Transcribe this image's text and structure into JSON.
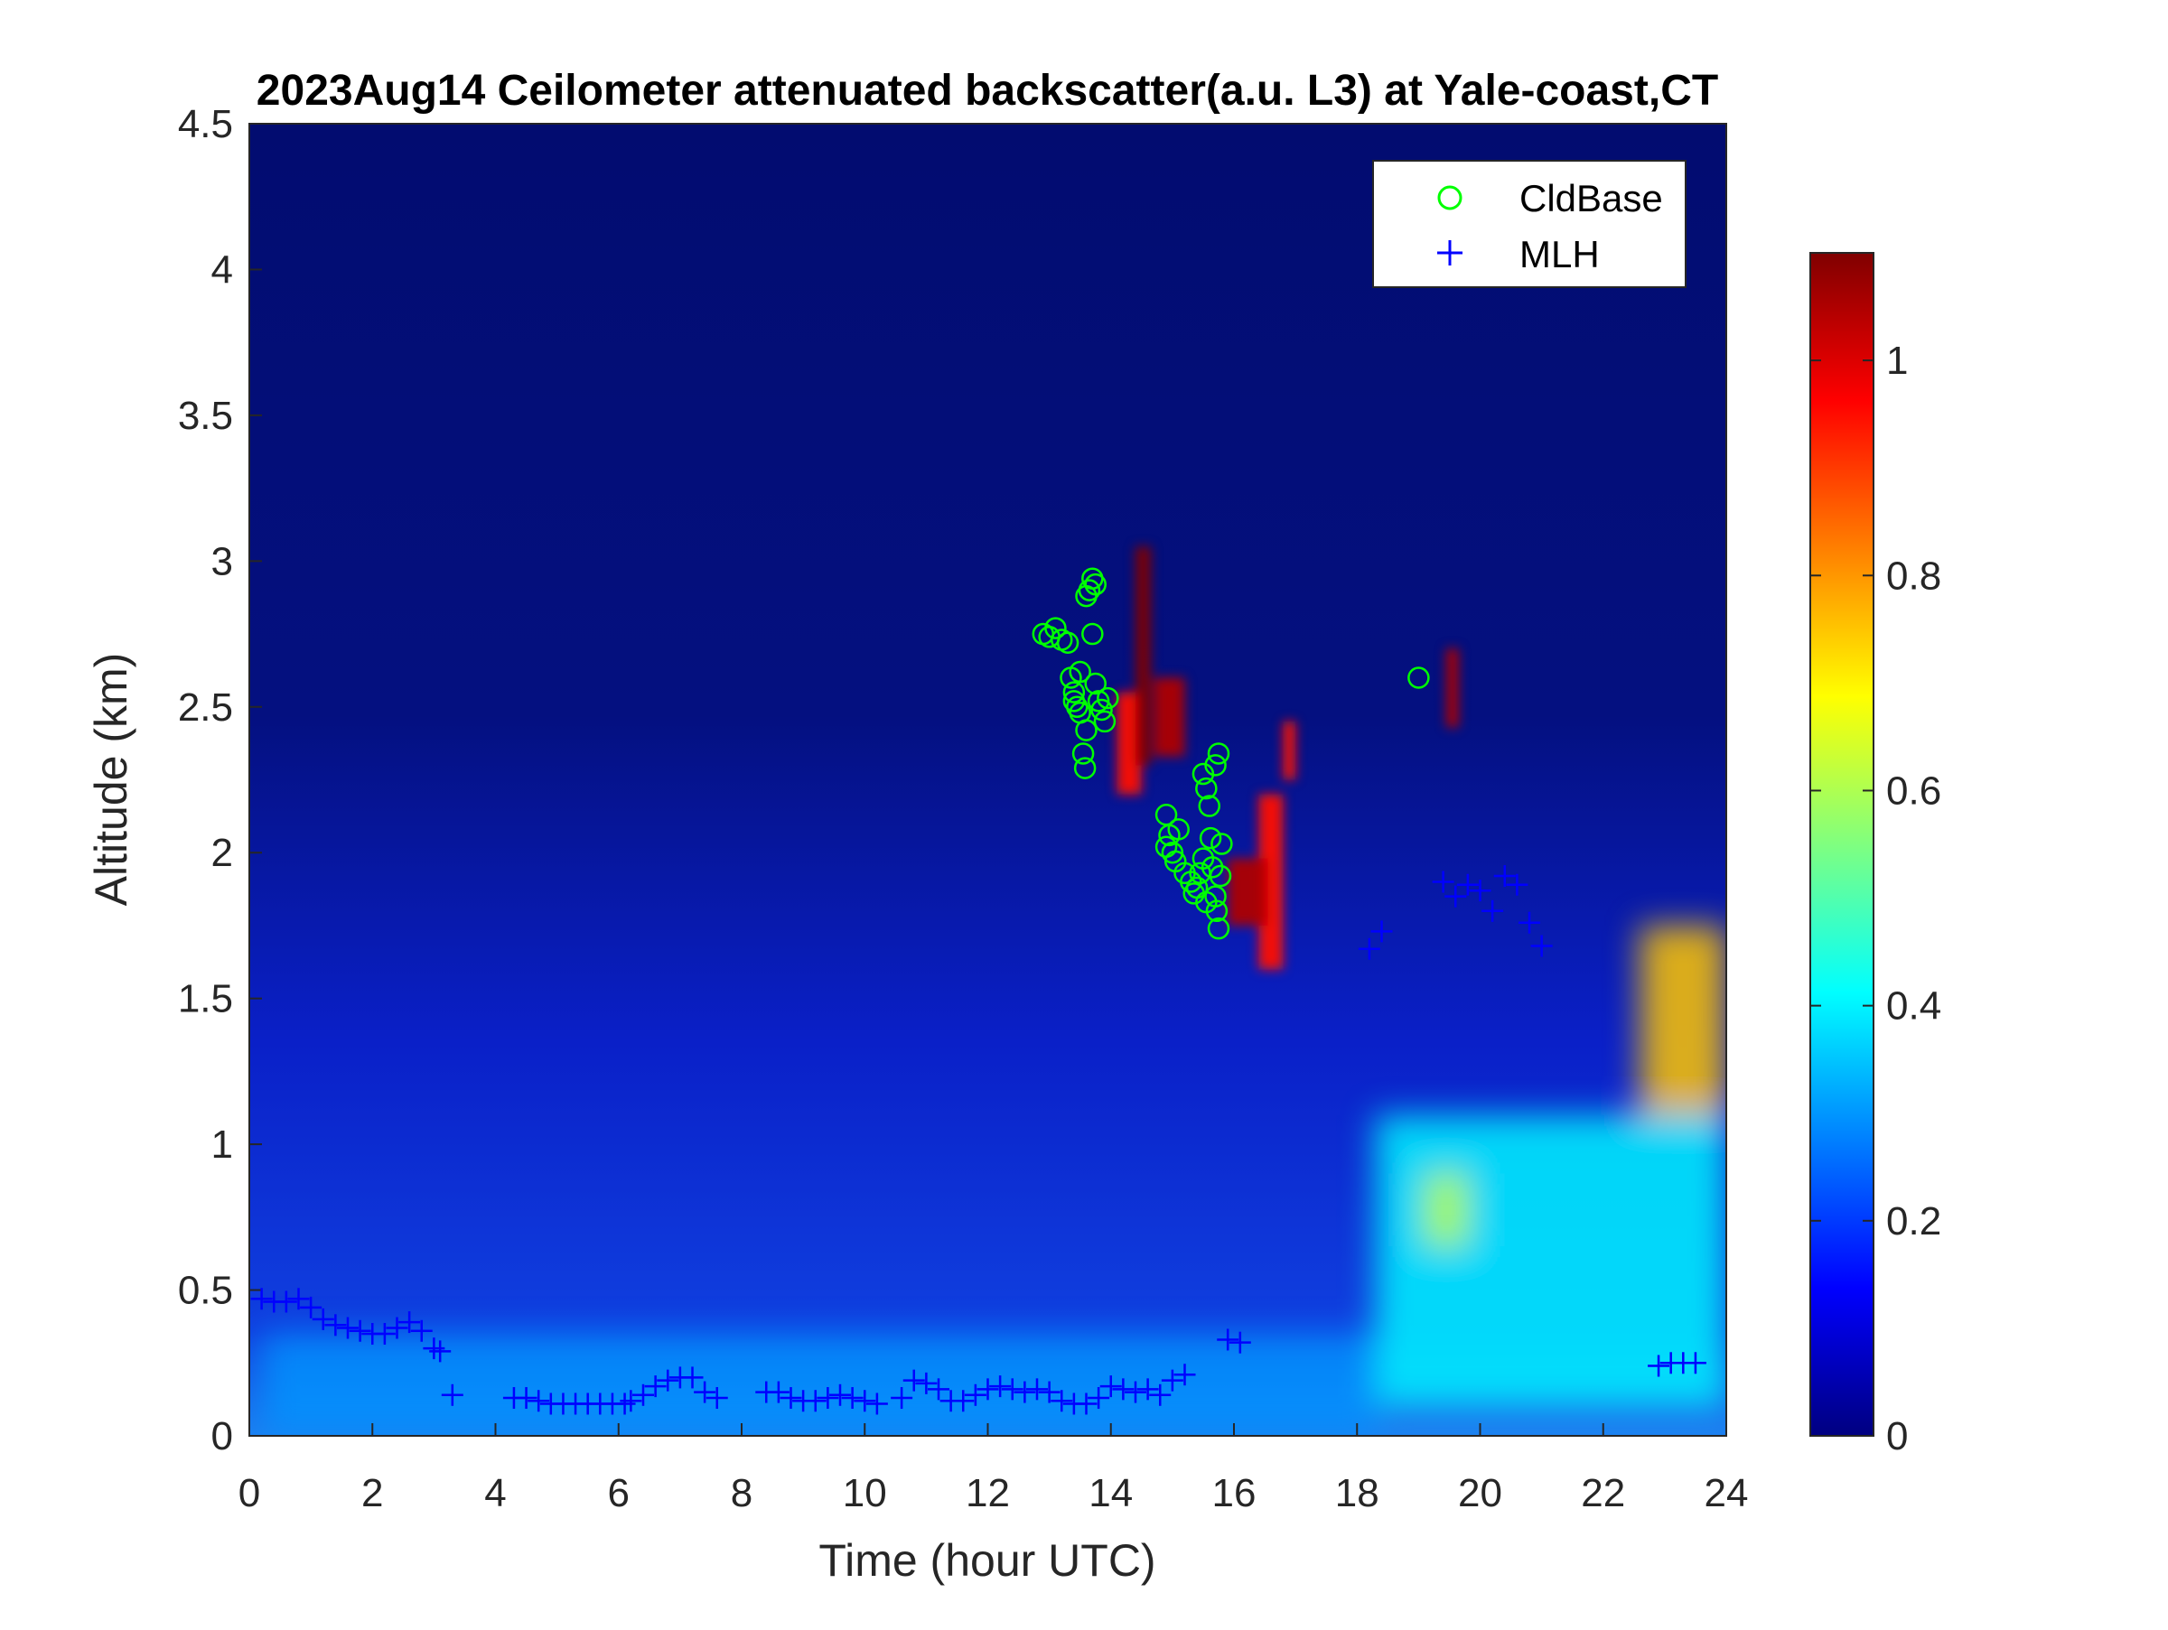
{
  "chart_data": {
    "type": "heatmap",
    "title": "2023Aug14 Ceilometer attenuated backscatter(a.u. L3) at Yale-coast,CT",
    "xlabel": "Time (hour UTC)",
    "ylabel": "Altitude (km)",
    "xlim": [
      0,
      24
    ],
    "ylim": [
      0,
      4.5
    ],
    "xticks": [
      0,
      2,
      4,
      6,
      8,
      10,
      12,
      14,
      16,
      18,
      20,
      22,
      24
    ],
    "yticks": [
      0,
      0.5,
      1,
      1.5,
      2,
      2.5,
      3,
      3.5,
      4,
      4.5
    ],
    "xtick_labels": [
      "0",
      "2",
      "4",
      "6",
      "8",
      "10",
      "12",
      "14",
      "16",
      "18",
      "20",
      "22",
      "24"
    ],
    "ytick_labels": [
      "0",
      "0.5",
      "1",
      "1.5",
      "2",
      "2.5",
      "3",
      "3.5",
      "4",
      "4.5"
    ],
    "colorbar": {
      "colormap": "jet",
      "clim": [
        0,
        1.1
      ],
      "ticks": [
        0,
        0.2,
        0.4,
        0.6,
        0.8,
        1
      ],
      "tick_labels": [
        "0",
        "0.2",
        "0.4",
        "0.6",
        "0.8",
        "1"
      ]
    },
    "legend": {
      "position": "top-right",
      "entries": [
        {
          "label": "CldBase",
          "marker": "circle",
          "color": "#00ff00"
        },
        {
          "label": "MLH",
          "marker": "plus",
          "color": "#0000ff"
        }
      ]
    },
    "series": [
      {
        "name": "CldBase",
        "marker": "circle",
        "color": "#00ff00",
        "points": [
          [
            12.9,
            2.75
          ],
          [
            13.0,
            2.74
          ],
          [
            13.1,
            2.77
          ],
          [
            13.2,
            2.73
          ],
          [
            13.3,
            2.72
          ],
          [
            13.35,
            2.6
          ],
          [
            13.4,
            2.55
          ],
          [
            13.45,
            2.5
          ],
          [
            13.5,
            2.48
          ],
          [
            13.55,
            2.34
          ],
          [
            13.58,
            2.29
          ],
          [
            13.6,
            2.88
          ],
          [
            13.65,
            2.9
          ],
          [
            13.7,
            2.94
          ],
          [
            13.75,
            2.92
          ],
          [
            13.7,
            2.75
          ],
          [
            13.75,
            2.58
          ],
          [
            13.8,
            2.52
          ],
          [
            13.85,
            2.49
          ],
          [
            13.9,
            2.45
          ],
          [
            13.95,
            2.53
          ],
          [
            13.5,
            2.62
          ],
          [
            13.4,
            2.52
          ],
          [
            13.6,
            2.42
          ],
          [
            14.9,
            2.13
          ],
          [
            14.95,
            2.06
          ],
          [
            15.0,
            2.0
          ],
          [
            15.05,
            1.97
          ],
          [
            14.9,
            2.02
          ],
          [
            15.1,
            2.08
          ],
          [
            15.2,
            1.93
          ],
          [
            15.3,
            1.9
          ],
          [
            15.35,
            1.86
          ],
          [
            15.4,
            1.88
          ],
          [
            15.45,
            1.93
          ],
          [
            15.5,
            1.98
          ],
          [
            15.5,
            2.27
          ],
          [
            15.55,
            2.22
          ],
          [
            15.6,
            2.16
          ],
          [
            15.62,
            2.05
          ],
          [
            15.65,
            1.95
          ],
          [
            15.7,
            1.85
          ],
          [
            15.72,
            1.8
          ],
          [
            15.75,
            1.74
          ],
          [
            15.78,
            1.92
          ],
          [
            15.8,
            2.03
          ],
          [
            15.7,
            2.3
          ],
          [
            15.75,
            2.34
          ],
          [
            15.55,
            1.83
          ],
          [
            19.0,
            2.6
          ]
        ]
      },
      {
        "name": "MLH",
        "marker": "plus",
        "color": "#0000ff",
        "points": [
          [
            0.2,
            0.47
          ],
          [
            0.4,
            0.46
          ],
          [
            0.6,
            0.46
          ],
          [
            0.8,
            0.47
          ],
          [
            1.0,
            0.44
          ],
          [
            1.2,
            0.4
          ],
          [
            1.4,
            0.38
          ],
          [
            1.6,
            0.37
          ],
          [
            1.8,
            0.36
          ],
          [
            2.0,
            0.35
          ],
          [
            2.2,
            0.35
          ],
          [
            2.4,
            0.37
          ],
          [
            2.6,
            0.39
          ],
          [
            2.8,
            0.36
          ],
          [
            3.0,
            0.3
          ],
          [
            3.1,
            0.29
          ],
          [
            3.3,
            0.14
          ],
          [
            4.3,
            0.13
          ],
          [
            4.5,
            0.13
          ],
          [
            4.7,
            0.12
          ],
          [
            4.9,
            0.11
          ],
          [
            5.1,
            0.11
          ],
          [
            5.3,
            0.11
          ],
          [
            5.5,
            0.11
          ],
          [
            5.7,
            0.11
          ],
          [
            5.9,
            0.11
          ],
          [
            6.1,
            0.11
          ],
          [
            6.2,
            0.12
          ],
          [
            6.4,
            0.14
          ],
          [
            6.6,
            0.17
          ],
          [
            6.8,
            0.19
          ],
          [
            7.0,
            0.2
          ],
          [
            7.2,
            0.2
          ],
          [
            7.4,
            0.15
          ],
          [
            7.6,
            0.13
          ],
          [
            8.4,
            0.15
          ],
          [
            8.6,
            0.15
          ],
          [
            8.8,
            0.13
          ],
          [
            9.0,
            0.12
          ],
          [
            9.2,
            0.12
          ],
          [
            9.4,
            0.13
          ],
          [
            9.6,
            0.14
          ],
          [
            9.8,
            0.13
          ],
          [
            10.0,
            0.12
          ],
          [
            10.2,
            0.11
          ],
          [
            10.6,
            0.13
          ],
          [
            10.8,
            0.19
          ],
          [
            11.0,
            0.18
          ],
          [
            11.2,
            0.16
          ],
          [
            11.4,
            0.12
          ],
          [
            11.6,
            0.12
          ],
          [
            11.8,
            0.14
          ],
          [
            12.0,
            0.16
          ],
          [
            12.2,
            0.17
          ],
          [
            12.4,
            0.16
          ],
          [
            12.6,
            0.15
          ],
          [
            12.8,
            0.16
          ],
          [
            13.0,
            0.15
          ],
          [
            13.2,
            0.12
          ],
          [
            13.4,
            0.11
          ],
          [
            13.6,
            0.11
          ],
          [
            13.8,
            0.13
          ],
          [
            14.0,
            0.17
          ],
          [
            14.2,
            0.16
          ],
          [
            14.4,
            0.15
          ],
          [
            14.6,
            0.16
          ],
          [
            14.8,
            0.14
          ],
          [
            15.0,
            0.19
          ],
          [
            15.2,
            0.21
          ],
          [
            15.9,
            0.33
          ],
          [
            16.1,
            0.32
          ],
          [
            18.2,
            1.67
          ],
          [
            18.4,
            1.73
          ],
          [
            19.4,
            1.9
          ],
          [
            19.6,
            1.85
          ],
          [
            19.8,
            1.89
          ],
          [
            20.0,
            1.87
          ],
          [
            20.2,
            1.8
          ],
          [
            20.4,
            1.92
          ],
          [
            20.6,
            1.89
          ],
          [
            20.8,
            1.76
          ],
          [
            21.0,
            1.68
          ],
          [
            22.9,
            0.24
          ],
          [
            23.1,
            0.25
          ],
          [
            23.3,
            0.25
          ],
          [
            23.5,
            0.25
          ]
        ]
      }
    ],
    "backscatter_features": [
      {
        "kind": "cloud",
        "t0": 14.4,
        "t1": 14.65,
        "z0": 2.3,
        "z1": 3.05,
        "value": 1.1
      },
      {
        "kind": "cloud",
        "t0": 14.7,
        "t1": 15.2,
        "z0": 2.33,
        "z1": 2.6,
        "value": 1.05
      },
      {
        "kind": "cloud",
        "t0": 14.1,
        "t1": 14.5,
        "z0": 2.2,
        "z1": 2.55,
        "value": 0.95
      },
      {
        "kind": "cloud",
        "t0": 15.9,
        "t1": 16.55,
        "z0": 1.75,
        "z1": 1.98,
        "value": 1.05
      },
      {
        "kind": "cloud",
        "t0": 16.4,
        "t1": 16.8,
        "z0": 1.6,
        "z1": 2.2,
        "value": 0.95
      },
      {
        "kind": "cloud",
        "t0": 16.8,
        "t1": 17.0,
        "z0": 2.25,
        "z1": 2.45,
        "value": 0.95
      },
      {
        "kind": "cloud",
        "t0": 19.45,
        "t1": 19.65,
        "z0": 2.43,
        "z1": 2.7,
        "value": 1.05
      },
      {
        "kind": "aerosol",
        "t0": 22.6,
        "t1": 24.0,
        "z0": 1.1,
        "z1": 1.75,
        "value": 0.75
      },
      {
        "kind": "aerosol",
        "t0": 19.1,
        "t1": 19.8,
        "z0": 0.65,
        "z1": 0.9,
        "value": 0.62
      },
      {
        "kind": "aerosol",
        "t0": 18.3,
        "t1": 24.0,
        "z0": 0.1,
        "z1": 1.1,
        "value": 0.4
      }
    ]
  }
}
